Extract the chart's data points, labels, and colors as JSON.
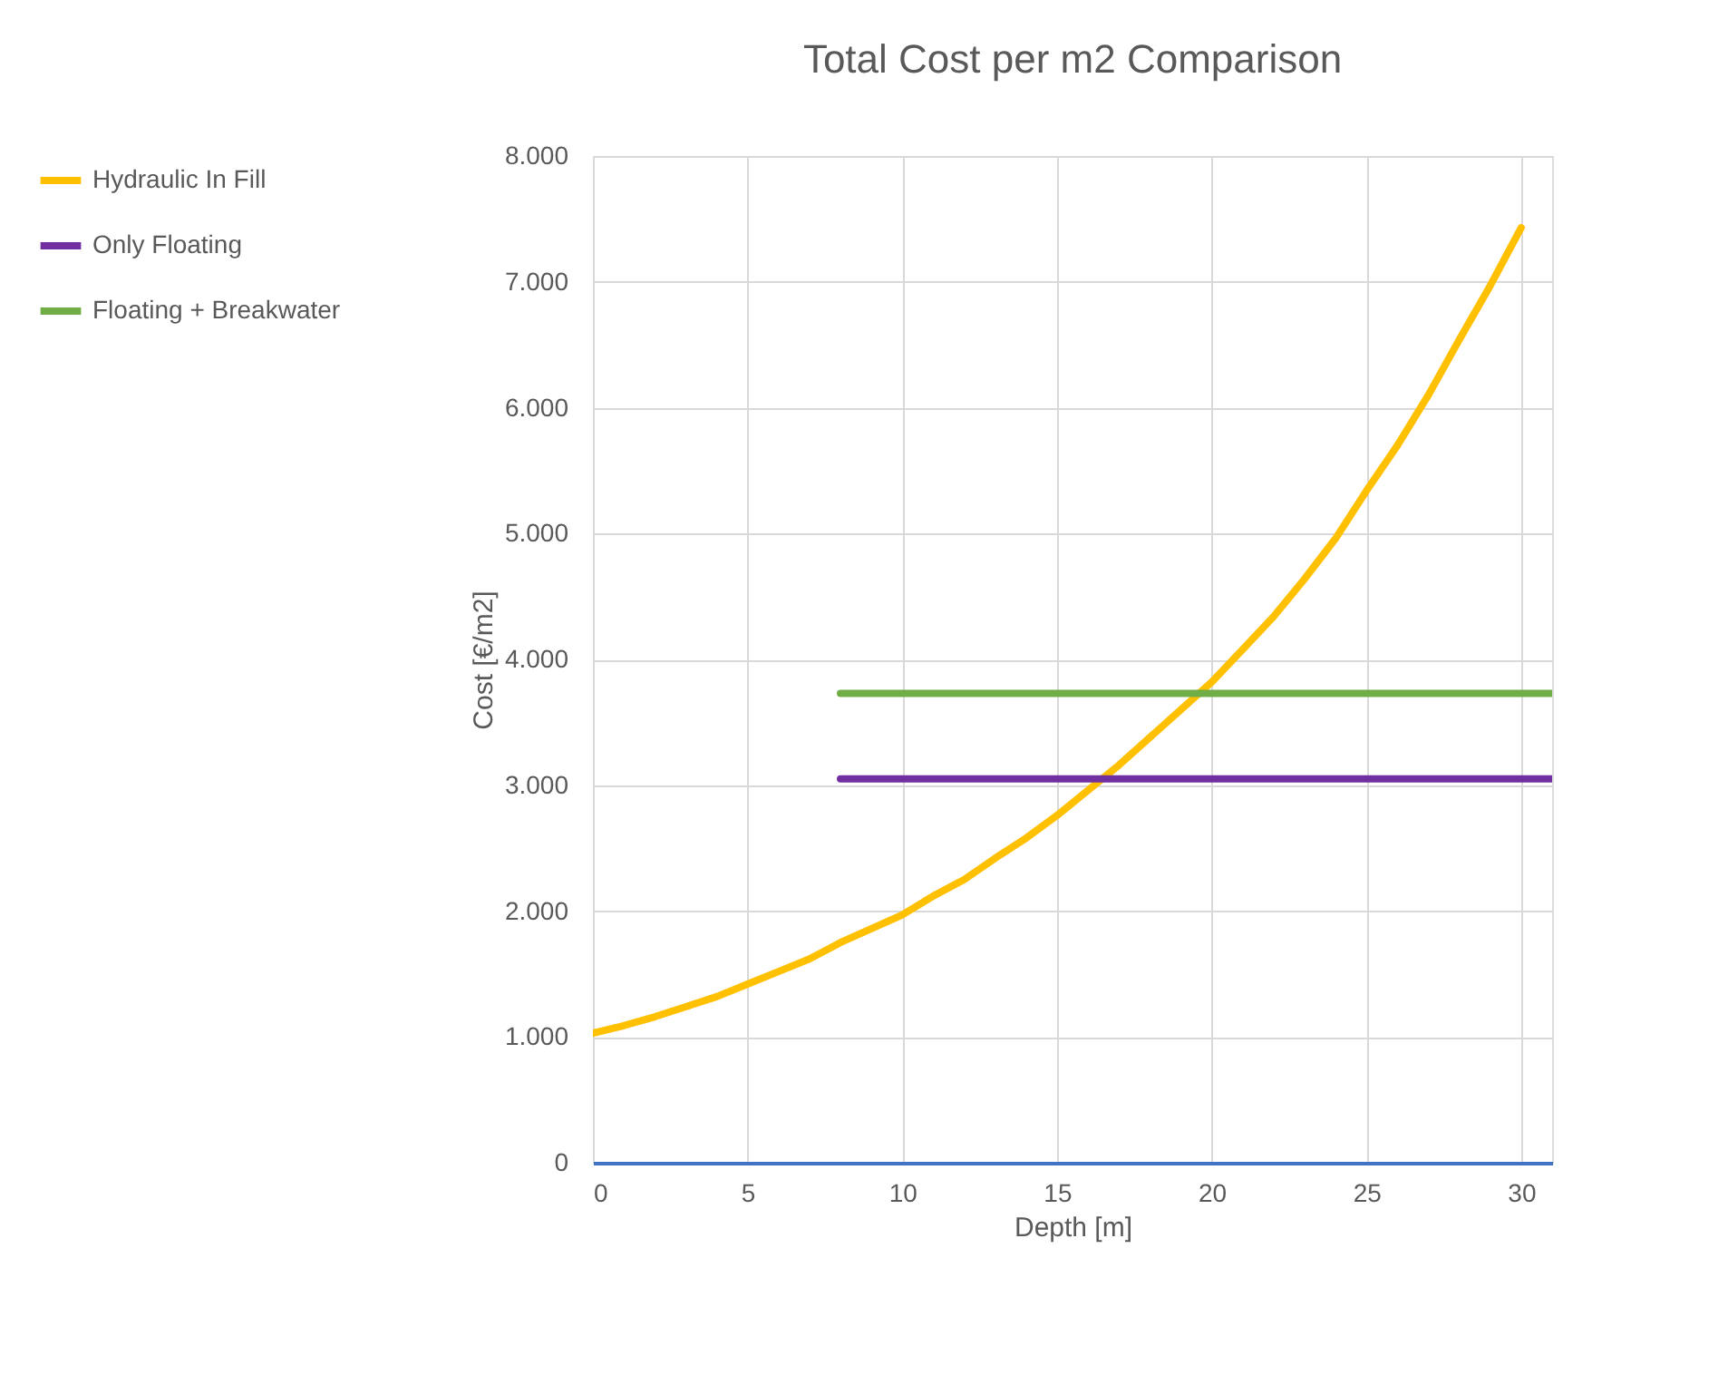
{
  "chart_data": {
    "type": "line",
    "title": "Total Cost per m2 Comparison",
    "xlabel": "Depth [m]",
    "ylabel": "Cost [€/m2]",
    "xlim": [
      0,
      31
    ],
    "xticks": [
      0,
      5,
      10,
      15,
      20,
      25,
      30
    ],
    "ylim": [
      0,
      8000
    ],
    "yticks": [
      {
        "value": 0,
        "label": "0"
      },
      {
        "value": 1000,
        "label": "1.000"
      },
      {
        "value": 2000,
        "label": "2.000"
      },
      {
        "value": 3000,
        "label": "3.000"
      },
      {
        "value": 4000,
        "label": "4.000"
      },
      {
        "value": 5000,
        "label": "5.000"
      },
      {
        "value": 6000,
        "label": "6.000"
      },
      {
        "value": 7000,
        "label": "7.000"
      },
      {
        "value": 8000,
        "label": "8.000"
      }
    ],
    "grid": true,
    "legend": "left",
    "marker": "none",
    "line_style": "solid",
    "series": [
      {
        "name": "Hydraulic In Fill",
        "color": "#ffc000",
        "x": [
          0,
          1,
          2,
          3,
          4,
          5,
          6,
          7,
          8,
          9,
          10,
          11,
          12,
          13,
          14,
          15,
          16,
          17,
          18,
          19,
          20,
          21,
          22,
          23,
          24,
          25,
          26,
          27,
          28,
          29,
          30
        ],
        "values": [
          1030,
          1090,
          1160,
          1240,
          1320,
          1420,
          1520,
          1620,
          1750,
          1860,
          1970,
          2120,
          2250,
          2420,
          2580,
          2760,
          2960,
          3160,
          3380,
          3600,
          3820,
          4080,
          4340,
          4640,
          4960,
          5340,
          5700,
          6100,
          6540,
          6970,
          7430
        ]
      },
      {
        "name": "Only Floating",
        "color": "#7030a0",
        "x": [
          8,
          31
        ],
        "values": [
          3050,
          3050
        ]
      },
      {
        "name": "Floating + Breakwater",
        "color": "#70ad47",
        "x": [
          8,
          31
        ],
        "values": [
          3730,
          3730
        ]
      }
    ]
  }
}
